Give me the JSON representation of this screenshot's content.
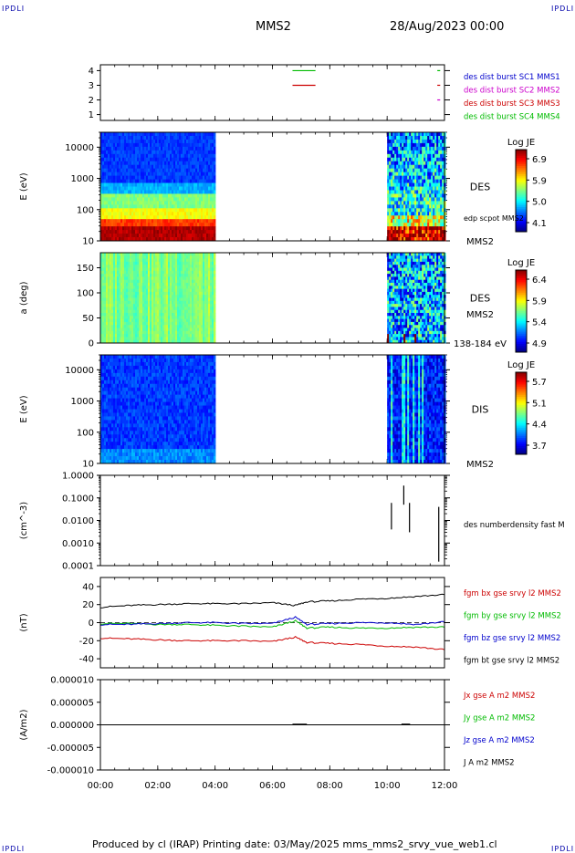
{
  "header": {
    "logo": "IPDLI",
    "spacecraft": "MMS2",
    "date": "28/Aug/2023 00:00"
  },
  "footer": {
    "text": "Produced by cl (IRAP)   Printing date: 03/May/2025   mms_mms2_srvy_vue_web1.cl"
  },
  "time_axis": {
    "ticks": [
      "00:00",
      "02:00",
      "04:00",
      "06:00",
      "08:00",
      "10:00",
      "12:00"
    ],
    "range_hours": [
      0,
      12
    ]
  },
  "chart_data": [
    {
      "type": "scatter",
      "id": "burst",
      "ylabel": "",
      "yticks": [
        "4",
        "3",
        "2",
        "1"
      ],
      "ylim": [
        0.6,
        4.4
      ],
      "legend": [
        {
          "label": "des dist burst SC1 MMS1",
          "color": "#0000cc"
        },
        {
          "label": "des dist burst SC2 MMS2",
          "color": "#cc00cc"
        },
        {
          "label": "des dist burst SC3 MMS3",
          "color": "#cc0000"
        },
        {
          "label": "des dist burst SC4 MMS4",
          "color": "#00bb00"
        }
      ],
      "segments": [
        {
          "sc": 4,
          "t0": 6.7,
          "t1": 7.5,
          "color": "#00bb00"
        },
        {
          "sc": 3,
          "t0": 6.7,
          "t1": 7.5,
          "color": "#cc0000"
        },
        {
          "sc": 4,
          "t0": 11.75,
          "t1": 11.85,
          "color": "#00bb00"
        },
        {
          "sc": 3,
          "t0": 11.75,
          "t1": 11.85,
          "color": "#cc0000"
        },
        {
          "sc": 2,
          "t0": 11.75,
          "t1": 11.85,
          "color": "#cc00cc"
        }
      ]
    },
    {
      "type": "heatmap",
      "id": "des_energy",
      "ylabel": "E (eV)",
      "yticks": [
        "10000",
        "1000",
        "100",
        "10"
      ],
      "ylim": [
        10,
        30000
      ],
      "yscale": "log",
      "label_right": "DES",
      "label_right2": "edp scpot MMS2",
      "label_bottom": "MMS2",
      "colorbar": {
        "title": "Log JE",
        "ticks": [
          "6.9",
          "5.9",
          "5.0",
          "4.1"
        ]
      },
      "data_intervals": [
        [
          0,
          4.0
        ],
        [
          10.0,
          12.0
        ]
      ]
    },
    {
      "type": "heatmap",
      "id": "des_pitch",
      "ylabel": "a (deg)",
      "yticks": [
        "150",
        "100",
        "50",
        "0"
      ],
      "ylim": [
        0,
        180
      ],
      "label_right": "DES",
      "label_right2": "MMS2",
      "label_bottom": "138-184 eV",
      "colorbar": {
        "title": "Log JE",
        "ticks": [
          "6.4",
          "5.9",
          "5.4",
          "4.9"
        ]
      },
      "data_intervals": [
        [
          0,
          4.0
        ],
        [
          10.0,
          12.0
        ]
      ]
    },
    {
      "type": "heatmap",
      "id": "dis_energy",
      "ylabel": "E (eV)",
      "yticks": [
        "10000",
        "1000",
        "100",
        "10"
      ],
      "ylim": [
        10,
        30000
      ],
      "yscale": "log",
      "label_right": "DIS",
      "label_bottom": "MMS2",
      "colorbar": {
        "title": "Log JE",
        "ticks": [
          "5.7",
          "5.1",
          "4.4",
          "3.7"
        ]
      },
      "data_intervals": [
        [
          0,
          4.0
        ],
        [
          10.0,
          12.0
        ]
      ]
    },
    {
      "type": "line",
      "id": "density",
      "ylabel": "(cm^-3)",
      "yticks": [
        "1.0000",
        "0.1000",
        "0.0100",
        "0.0010",
        "0.0001"
      ],
      "ylim": [
        0.0001,
        1.0
      ],
      "yscale": "log",
      "legend": [
        {
          "label": "des numberdensity fast M",
          "color": "#000000"
        }
      ],
      "bars": [
        {
          "t": 10.15,
          "lo": 0.004,
          "hi": 0.06
        },
        {
          "t": 10.58,
          "lo": 0.05,
          "hi": 0.35
        },
        {
          "t": 10.78,
          "lo": 0.003,
          "hi": 0.06
        },
        {
          "t": 11.8,
          "lo": 0.00015,
          "hi": 0.04
        }
      ]
    },
    {
      "type": "line",
      "id": "fgm",
      "ylabel": "(nT)",
      "yticks": [
        "40",
        "20",
        "0",
        "-20",
        "-40"
      ],
      "ylim": [
        -50,
        50
      ],
      "legend": [
        {
          "label": "fgm bx gse srvy l2 MMS2",
          "color": "#cc0000"
        },
        {
          "label": "fgm by gse srvy l2 MMS2",
          "color": "#00bb00"
        },
        {
          "label": "fgm bz gse srvy l2 MMS2",
          "color": "#0000cc"
        },
        {
          "label": "fgm bt gse srvy l2 MMS2",
          "color": "#000000"
        }
      ],
      "series": [
        {
          "name": "bt",
          "color": "#000000",
          "x": [
            0,
            1,
            2,
            3,
            4,
            5,
            6,
            6.8,
            7.2,
            8,
            9,
            10,
            11,
            12
          ],
          "y": [
            17,
            19,
            20,
            21,
            21,
            21,
            22,
            19,
            23,
            24,
            26,
            27,
            29,
            31
          ]
        },
        {
          "name": "bx",
          "color": "#cc0000",
          "x": [
            0,
            1,
            2,
            3,
            4,
            5,
            6,
            6.8,
            7.2,
            8,
            9,
            10,
            11,
            12
          ],
          "y": [
            -17,
            -18,
            -19,
            -20,
            -20,
            -20,
            -21,
            -16,
            -22,
            -23,
            -24,
            -26,
            -27,
            -30
          ]
        },
        {
          "name": "by",
          "color": "#00bb00",
          "x": [
            0,
            1,
            2,
            3,
            4,
            5,
            6,
            6.8,
            7.2,
            8,
            9,
            10,
            11,
            12
          ],
          "y": [
            -1,
            -1,
            -2,
            -2,
            -3,
            -4,
            -5,
            2,
            -6,
            -5,
            -6,
            -6,
            -5,
            -5
          ]
        },
        {
          "name": "bz",
          "color": "#0000cc",
          "x": [
            0,
            1,
            2,
            3,
            4,
            5,
            6,
            6.8,
            7.2,
            8,
            9,
            10,
            11,
            12
          ],
          "y": [
            -2,
            -2,
            -1,
            0,
            0,
            -1,
            -1,
            6,
            -2,
            -1,
            0,
            0,
            -2,
            1
          ]
        }
      ]
    },
    {
      "type": "line",
      "id": "current",
      "ylabel": "(A/m2)",
      "yticks": [
        "0.000010",
        "0.000005",
        "0.000000",
        "-0.000005",
        "-0.000010"
      ],
      "ylim": [
        -1e-05,
        1e-05
      ],
      "legend": [
        {
          "label": "Jx gse A m2 MMS2",
          "color": "#cc0000"
        },
        {
          "label": "Jy gse A m2 MMS2",
          "color": "#00bb00"
        },
        {
          "label": "Jz gse A m2 MMS2",
          "color": "#0000cc"
        },
        {
          "label": "J A m2 MMS2",
          "color": "#000000"
        }
      ],
      "series": [
        {
          "name": "J",
          "color": "#000000",
          "x": [
            0,
            12
          ],
          "y": [
            0,
            0
          ]
        }
      ]
    }
  ]
}
